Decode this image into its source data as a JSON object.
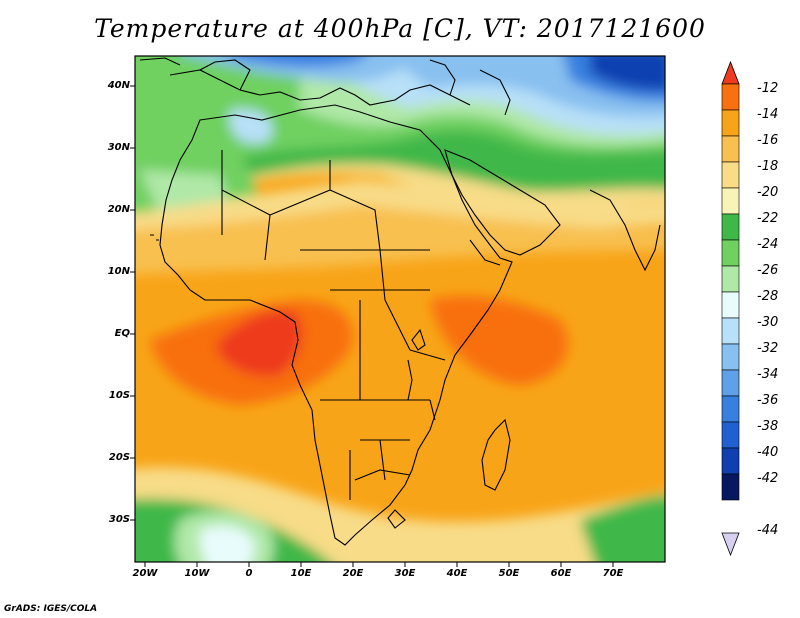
{
  "title": "Temperature at 400hPa [C], VT: 2017121600",
  "credit": "GrADS: IGES/COLA",
  "map": {
    "lat_ticks": [
      "40N",
      "30N",
      "20N",
      "10N",
      "EQ",
      "10S",
      "20S",
      "30S"
    ],
    "lon_ticks": [
      "20W",
      "10W",
      "0",
      "10E",
      "20E",
      "30E",
      "40E",
      "50E",
      "60E",
      "70E"
    ]
  },
  "colorbar": {
    "labels": [
      "-12",
      "-14",
      "-16",
      "-18",
      "-20",
      "-22",
      "-24",
      "-26",
      "-28",
      "-30",
      "-32",
      "-34",
      "-36",
      "-38",
      "-40",
      "-42",
      "-44"
    ],
    "colors": [
      "#ee3a1e",
      "#f87010",
      "#f8a418",
      "#f8c050",
      "#f8dc88",
      "#f8f4b8",
      "#40b848",
      "#70d060",
      "#b0e8a8",
      "#e8fcfc",
      "#b8e0f8",
      "#88c0f0",
      "#60a0e8",
      "#3880e0",
      "#2060d0",
      "#1040b0",
      "#081860",
      "#d8d0f0"
    ]
  }
}
